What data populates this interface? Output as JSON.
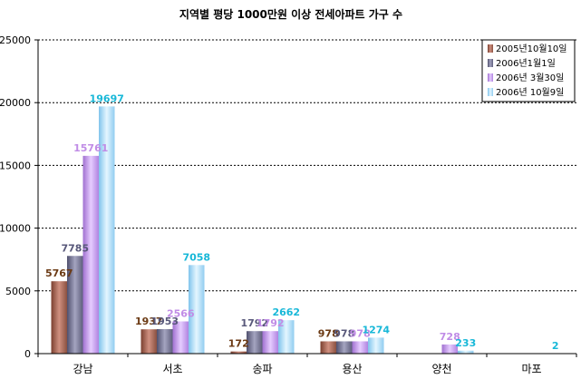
{
  "chart_data": {
    "type": "bar",
    "title": "지역별 평당 1000만원 이상 전세아파트 가구 수",
    "categories": [
      "강남",
      "서초",
      "송파",
      "용산",
      "양천",
      "마포"
    ],
    "ylim": [
      0,
      25000
    ],
    "yticks": [
      0,
      5000,
      10000,
      15000,
      20000,
      25000
    ],
    "grid": true,
    "legend_position": "top-right",
    "series": [
      {
        "name": "2005년10월10일",
        "values": [
          5767,
          1937,
          172,
          978,
          null,
          null
        ],
        "color": "#a86a5a",
        "label_color": "#6b3a14"
      },
      {
        "name": "2006년1월1일",
        "values": [
          7785,
          1953,
          1792,
          978,
          null,
          null
        ],
        "color": "#7a7a98",
        "label_color": "#58587a"
      },
      {
        "name": "2006년 3월30일",
        "values": [
          15761,
          2566,
          1792,
          978,
          728,
          null
        ],
        "color": "#c29be8",
        "label_color": "#c08ce6"
      },
      {
        "name": "2006년 10월9일",
        "values": [
          19697,
          7058,
          2662,
          1274,
          233,
          2
        ],
        "color": "#a8dcf8",
        "label_color": "#18b8d8"
      }
    ]
  }
}
